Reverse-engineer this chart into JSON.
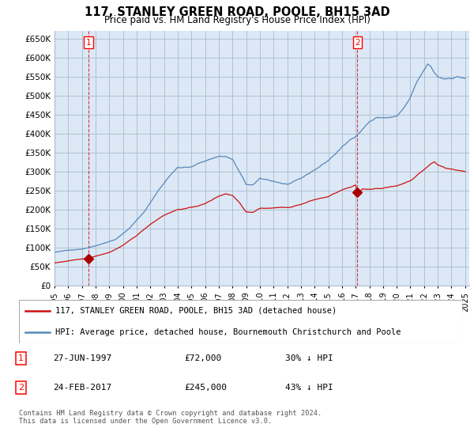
{
  "title": "117, STANLEY GREEN ROAD, POOLE, BH15 3AD",
  "subtitle": "Price paid vs. HM Land Registry's House Price Index (HPI)",
  "ylabel_ticks": [
    0,
    50000,
    100000,
    150000,
    200000,
    250000,
    300000,
    350000,
    400000,
    450000,
    500000,
    550000,
    600000,
    650000
  ],
  "ylim": [
    0,
    670000
  ],
  "xlim_start": 1995.0,
  "xlim_end": 2025.3,
  "hpi_color": "#5588bb",
  "hpi_fill_color": "#dce8f5",
  "price_color": "#cc1111",
  "marker_color": "#aa0000",
  "bg_color": "#ffffff",
  "chart_bg_color": "#dce8f5",
  "grid_color": "#aabbcc",
  "legend_label_price": "117, STANLEY GREEN ROAD, POOLE, BH15 3AD (detached house)",
  "legend_label_hpi": "HPI: Average price, detached house, Bournemouth Christchurch and Poole",
  "transaction1_label": "1",
  "transaction1_date": "27-JUN-1997",
  "transaction1_price": "£72,000",
  "transaction1_hpi": "30% ↓ HPI",
  "transaction1_x": 1997.49,
  "transaction1_y": 72000,
  "transaction2_label": "2",
  "transaction2_date": "24-FEB-2017",
  "transaction2_price": "£245,000",
  "transaction2_hpi": "43% ↓ HPI",
  "transaction2_x": 2017.13,
  "transaction2_y": 245000,
  "footer": "Contains HM Land Registry data © Crown copyright and database right 2024.\nThis data is licensed under the Open Government Licence v3.0."
}
